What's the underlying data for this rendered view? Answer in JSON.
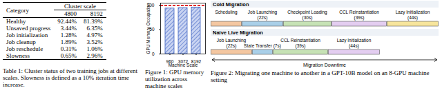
{
  "table": {
    "caption": "Table 1: Cluster status of two training jobs at different scales. Slowness is defined as a 10% iteration time increase.",
    "header": [
      "Category",
      "Cluster scale"
    ],
    "subheader": [
      "4800",
      "8192"
    ],
    "rows": [
      [
        "Healthy",
        "92.44%",
        "81.39%"
      ],
      [
        "Unsaved progress",
        "3.44%",
        "6.35%"
      ],
      [
        "Job initialization",
        "1.28%",
        "4.97%"
      ],
      [
        "Job cleanup",
        "1.89%",
        "3.52%"
      ],
      [
        "Job reschedule",
        "0.31%",
        "1.06%"
      ],
      [
        "Slowness",
        "0.65%",
        "2.96%"
      ]
    ]
  },
  "chart_data": {
    "type": "bar",
    "caption": "Figure 1: GPU memory utilization across machine scales",
    "x_label": "Machine Scale",
    "y_label": "GPU Memory Occupation",
    "categories": [
      "960",
      "3072",
      "8192"
    ],
    "values": [
      94,
      95,
      96
    ],
    "color": "#3b5fc0",
    "threshold": {
      "value": 100,
      "color": "#e02b2b",
      "line_style": "dashed"
    },
    "ylim": [
      0,
      105
    ],
    "yticks": [
      0,
      50,
      100
    ],
    "grid": false
  },
  "diagram": {
    "caption": "Figure 2: Migrating one machine to another in a GPT-10B model on an 8-GPU machine setting",
    "rows": [
      {
        "title": "Cold Migration",
        "stages": [
          {
            "label": "Scheduling"
          },
          {
            "label": "Job Launching",
            "duration": "(22s)"
          },
          {
            "label": "Checkpoint Loading",
            "duration": "(30s)"
          },
          {
            "label": "CCL Reinstantiation",
            "duration": "(39s)"
          },
          {
            "label": "Lazy Initialization",
            "duration": "(44s)"
          }
        ]
      },
      {
        "title": "Naive Live Migration",
        "stages": [
          {
            "label": "Job Launching",
            "duration": "(22s)"
          },
          {
            "label": "State Transfer",
            "duration": "(7s)"
          },
          {
            "label": "CCL Reinstantiation",
            "duration": "(39s)"
          },
          {
            "label": "Lazy Initialization",
            "duration": "(44s)"
          }
        ]
      }
    ],
    "downtime_label": "Migration Downtime"
  }
}
